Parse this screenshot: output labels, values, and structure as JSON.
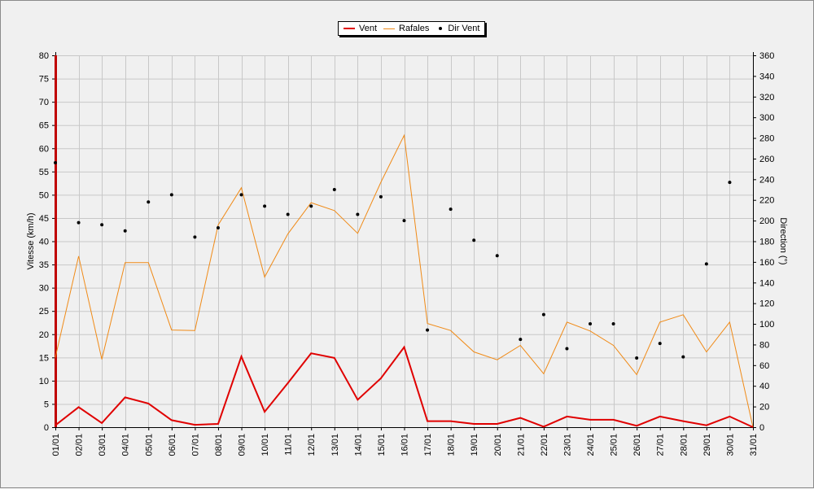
{
  "chart_data": {
    "type": "line",
    "categories": [
      "01/01",
      "02/01",
      "03/01",
      "04/01",
      "05/01",
      "06/01",
      "07/01",
      "08/01",
      "09/01",
      "10/01",
      "11/01",
      "12/01",
      "13/01",
      "14/01",
      "15/01",
      "16/01",
      "17/01",
      "18/01",
      "19/01",
      "20/01",
      "21/01",
      "22/01",
      "23/01",
      "24/01",
      "25/01",
      "26/01",
      "27/01",
      "28/01",
      "29/01",
      "30/01",
      "31/01"
    ],
    "ylabel": "Vitesse (km/h)",
    "ylabel_right": "Direction (°)",
    "ylim": [
      0,
      80
    ],
    "ylim_right": [
      0,
      360
    ],
    "yticks": [
      "0",
      "5",
      "10",
      "15",
      "20",
      "25",
      "30",
      "35",
      "40",
      "45",
      "50",
      "55",
      "60",
      "65",
      "70",
      "75",
      "80"
    ],
    "yticks_right": [
      "0",
      "20",
      "40",
      "60",
      "80",
      "100",
      "120",
      "140",
      "160",
      "180",
      "200",
      "220",
      "240",
      "260",
      "280",
      "300",
      "320",
      "340",
      "360"
    ],
    "grid": true,
    "legend_position": "top-center",
    "series": [
      {
        "name": "Vent",
        "color": "#e00000",
        "axis": "left",
        "kind": "line",
        "values": [
          0.4,
          4.3,
          0.9,
          6.4,
          5.1,
          1.5,
          0.5,
          0.7,
          15.2,
          3.3,
          9.5,
          15.9,
          14.9,
          5.9,
          10.5,
          17.2,
          1.3,
          1.3,
          0.7,
          0.7,
          2.0,
          0.1,
          2.3,
          1.6,
          1.6,
          0.3,
          2.3,
          1.3,
          0.4,
          2.3,
          0.0
        ]
      },
      {
        "name": "Rafales",
        "color": "#f08a16",
        "axis": "left",
        "kind": "line",
        "values": [
          15.0,
          36.8,
          14.6,
          35.4,
          35.4,
          20.9,
          20.8,
          43.5,
          51.5,
          32.3,
          41.6,
          48.3,
          46.6,
          41.7,
          52.7,
          62.8,
          22.3,
          20.8,
          16.2,
          14.5,
          17.6,
          11.5,
          22.6,
          20.7,
          17.6,
          11.3,
          22.6,
          24.2,
          16.2,
          22.6,
          0.0
        ]
      },
      {
        "name": "Dir Vent",
        "color": "#000000",
        "axis": "right",
        "kind": "scatter",
        "values": [
          256,
          198,
          196,
          190,
          218,
          225,
          184,
          193,
          225,
          214,
          206,
          214,
          230,
          206,
          223,
          200,
          94,
          211,
          181,
          166,
          85,
          109,
          76,
          100,
          100,
          67,
          81,
          68,
          158,
          237,
          null
        ]
      }
    ]
  }
}
